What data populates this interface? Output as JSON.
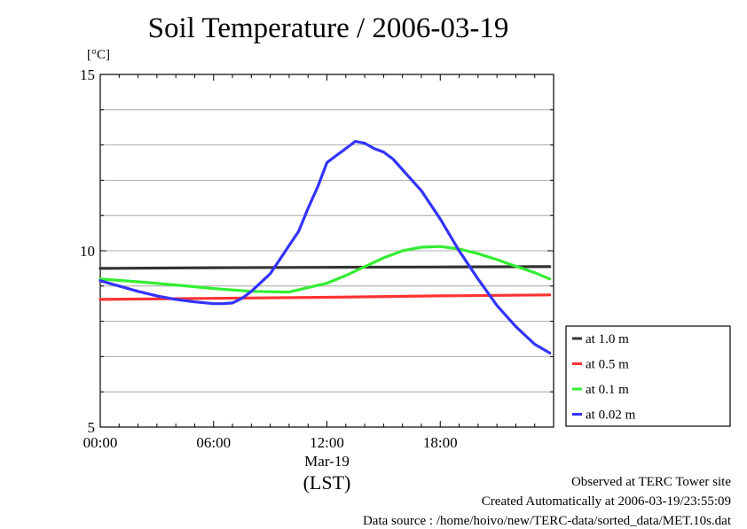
{
  "header": {
    "title": "Soil Temperature / 2006-03-19",
    "unit": "[°C]"
  },
  "footer": {
    "line1": "Observed at TERC Tower site",
    "line2": "Created Automatically at 2006-03-19/23:55:09",
    "line3": "Data source : /home/hoivo/new/TERC-data/sorted_data/MET.10s.dat"
  },
  "chart_data": {
    "type": "line",
    "ylim": [
      5,
      15
    ],
    "xlim": [
      0,
      24
    ],
    "yticks": [
      5,
      10,
      15
    ],
    "ytick_labels": [
      "5",
      "10",
      "15"
    ],
    "xticks": [
      0,
      6,
      12,
      18
    ],
    "xtick_labels": [
      "00:00",
      "06:00",
      "12:00",
      "18:00"
    ],
    "date_label": "Mar-19",
    "xlabel": "(LST)",
    "grid": true,
    "legend_position": "right",
    "series": [
      {
        "name": "at 1.0 m",
        "color": "#333333",
        "x": [
          0,
          6,
          12,
          18,
          23.8
        ],
        "y": [
          9.5,
          9.52,
          9.53,
          9.54,
          9.55
        ]
      },
      {
        "name": "at 0.5 m",
        "color": "#ff3333",
        "x": [
          0,
          6,
          12,
          18,
          23.8
        ],
        "y": [
          8.62,
          8.65,
          8.68,
          8.72,
          8.75
        ]
      },
      {
        "name": "at 0.1 m",
        "color": "#33ee33",
        "x": [
          0,
          2,
          4,
          6,
          8,
          10,
          12,
          13,
          14,
          15,
          16,
          17,
          18,
          19,
          20,
          21,
          22,
          23,
          23.8
        ],
        "y": [
          9.2,
          9.12,
          9.03,
          8.93,
          8.85,
          8.83,
          9.08,
          9.3,
          9.55,
          9.8,
          10.0,
          10.1,
          10.12,
          10.05,
          9.92,
          9.75,
          9.56,
          9.38,
          9.2
        ]
      },
      {
        "name": "at 0.02 m",
        "color": "#3333ff",
        "x": [
          0,
          1,
          2,
          3,
          4,
          5,
          6,
          6.5,
          7,
          7.5,
          8,
          8.5,
          9,
          9.5,
          10,
          10.5,
          11,
          11.5,
          12,
          12.5,
          13,
          13.5,
          14,
          14.5,
          15,
          15.5,
          16,
          17,
          18,
          19,
          20,
          21,
          22,
          23,
          23.8
        ],
        "y": [
          9.15,
          9.0,
          8.85,
          8.72,
          8.62,
          8.55,
          8.5,
          8.5,
          8.52,
          8.65,
          8.85,
          9.1,
          9.35,
          9.75,
          10.15,
          10.55,
          11.2,
          11.8,
          12.5,
          12.7,
          12.9,
          13.1,
          13.05,
          12.9,
          12.8,
          12.6,
          12.3,
          11.7,
          10.9,
          10.0,
          9.2,
          8.45,
          7.85,
          7.35,
          7.1
        ]
      }
    ]
  }
}
